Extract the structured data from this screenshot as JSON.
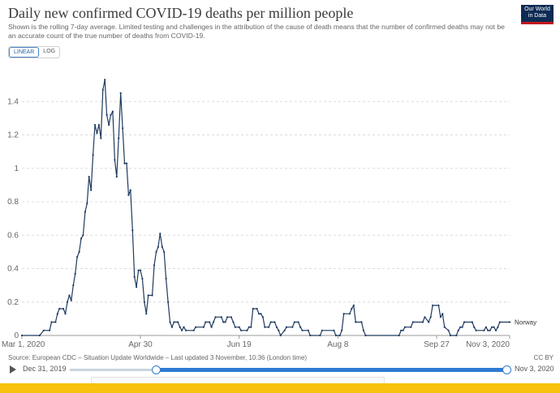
{
  "header": {
    "title": "Daily new confirmed COVID-19 deaths per million people",
    "subtitle": "Shown is the rolling 7-day average. Limited testing and challenges in the attribution of the cause of death means that the number of confirmed deaths may not be an accurate count of the true number of deaths from COVID-19.",
    "logo_line1": "Our World",
    "logo_line2": "in Data"
  },
  "scale_toggle": {
    "linear_label": "LINEAR",
    "log_label": "LOG",
    "selected": "LINEAR"
  },
  "footer": {
    "source": "Source: European CDC – Situation Update Worldwide – Last updated 3 November, 10:36 (London time)",
    "license": "CC BY"
  },
  "timeline": {
    "start_label": "Dec 31, 2019",
    "end_label": "Nov 3, 2020"
  },
  "colors": {
    "line": "#1f3a5f",
    "accent": "#2e7bd2",
    "footer_band": "#f7c20e",
    "logo_bg": "#0d2b53"
  },
  "chart_data": {
    "type": "line",
    "title": "Daily new confirmed COVID-19 deaths per million people",
    "xlabel": "",
    "ylabel": "",
    "x_range": [
      "2020-03-01",
      "2020-11-03"
    ],
    "ylim": [
      0,
      1.6
    ],
    "y_ticks": [
      0,
      0.2,
      0.4,
      0.6,
      0.8,
      1,
      1.2,
      1.4
    ],
    "y_tick_labels": [
      "0",
      "0.2",
      "0.4",
      "0.6",
      "0.8",
      "1",
      "1.2",
      "1.4"
    ],
    "x_ticks": [
      "2020-03-01",
      "2020-04-30",
      "2020-06-19",
      "2020-08-08",
      "2020-09-27",
      "2020-11-03"
    ],
    "x_tick_labels": [
      "Mar 1, 2020",
      "Apr 30",
      "Jun 19",
      "Aug 8",
      "Sep 27",
      "Nov 3, 2020"
    ],
    "grid": "horizontal",
    "series": [
      {
        "name": "Norway",
        "points": [
          [
            "2020-03-01",
            0
          ],
          [
            "2020-03-10",
            0
          ],
          [
            "2020-03-12",
            0.03
          ],
          [
            "2020-03-15",
            0.03
          ],
          [
            "2020-03-16",
            0.08
          ],
          [
            "2020-03-18",
            0.08
          ],
          [
            "2020-03-19",
            0.13
          ],
          [
            "2020-03-20",
            0.16
          ],
          [
            "2020-03-22",
            0.16
          ],
          [
            "2020-03-23",
            0.13
          ],
          [
            "2020-03-24",
            0.2
          ],
          [
            "2020-03-25",
            0.24
          ],
          [
            "2020-03-26",
            0.21
          ],
          [
            "2020-03-27",
            0.3
          ],
          [
            "2020-03-28",
            0.37
          ],
          [
            "2020-03-29",
            0.47
          ],
          [
            "2020-03-30",
            0.5
          ],
          [
            "2020-03-31",
            0.58
          ],
          [
            "2020-04-01",
            0.6
          ],
          [
            "2020-04-02",
            0.74
          ],
          [
            "2020-04-03",
            0.79
          ],
          [
            "2020-04-04",
            0.95
          ],
          [
            "2020-04-05",
            0.87
          ],
          [
            "2020-04-06",
            1.08
          ],
          [
            "2020-04-07",
            1.26
          ],
          [
            "2020-04-08",
            1.21
          ],
          [
            "2020-04-09",
            1.26
          ],
          [
            "2020-04-10",
            1.18
          ],
          [
            "2020-04-11",
            1.47
          ],
          [
            "2020-04-12",
            1.53
          ],
          [
            "2020-04-13",
            1.32
          ],
          [
            "2020-04-14",
            1.26
          ],
          [
            "2020-04-15",
            1.32
          ],
          [
            "2020-04-16",
            1.34
          ],
          [
            "2020-04-17",
            1.05
          ],
          [
            "2020-04-18",
            0.95
          ],
          [
            "2020-04-19",
            1.18
          ],
          [
            "2020-04-20",
            1.45
          ],
          [
            "2020-04-21",
            1.24
          ],
          [
            "2020-04-22",
            1.03
          ],
          [
            "2020-04-23",
            1.03
          ],
          [
            "2020-04-24",
            0.84
          ],
          [
            "2020-04-25",
            0.87
          ],
          [
            "2020-04-26",
            0.63
          ],
          [
            "2020-04-27",
            0.35
          ],
          [
            "2020-04-28",
            0.29
          ],
          [
            "2020-04-29",
            0.39
          ],
          [
            "2020-04-30",
            0.39
          ],
          [
            "2020-05-01",
            0.34
          ],
          [
            "2020-05-02",
            0.2
          ],
          [
            "2020-05-03",
            0.13
          ],
          [
            "2020-05-04",
            0.24
          ],
          [
            "2020-05-06",
            0.24
          ],
          [
            "2020-05-07",
            0.42
          ],
          [
            "2020-05-08",
            0.5
          ],
          [
            "2020-05-09",
            0.53
          ],
          [
            "2020-05-10",
            0.61
          ],
          [
            "2020-05-11",
            0.53
          ],
          [
            "2020-05-12",
            0.5
          ],
          [
            "2020-05-13",
            0.34
          ],
          [
            "2020-05-14",
            0.2
          ],
          [
            "2020-05-15",
            0.08
          ],
          [
            "2020-05-16",
            0.05
          ],
          [
            "2020-05-17",
            0.08
          ],
          [
            "2020-05-19",
            0.08
          ],
          [
            "2020-05-20",
            0.05
          ],
          [
            "2020-05-21",
            0.03
          ],
          [
            "2020-05-22",
            0.05
          ],
          [
            "2020-05-23",
            0.03
          ],
          [
            "2020-05-27",
            0.03
          ],
          [
            "2020-05-28",
            0.05
          ],
          [
            "2020-06-01",
            0.05
          ],
          [
            "2020-06-02",
            0.08
          ],
          [
            "2020-06-04",
            0.08
          ],
          [
            "2020-06-05",
            0.05
          ],
          [
            "2020-06-06",
            0.08
          ],
          [
            "2020-06-07",
            0.11
          ],
          [
            "2020-06-10",
            0.11
          ],
          [
            "2020-06-11",
            0.08
          ],
          [
            "2020-06-12",
            0.08
          ],
          [
            "2020-06-13",
            0.11
          ],
          [
            "2020-06-15",
            0.11
          ],
          [
            "2020-06-16",
            0.08
          ],
          [
            "2020-06-17",
            0.05
          ],
          [
            "2020-06-19",
            0.05
          ],
          [
            "2020-06-20",
            0.03
          ],
          [
            "2020-06-23",
            0.03
          ],
          [
            "2020-06-24",
            0.05
          ],
          [
            "2020-06-25",
            0.05
          ],
          [
            "2020-06-26",
            0.16
          ],
          [
            "2020-06-28",
            0.16
          ],
          [
            "2020-06-29",
            0.13
          ],
          [
            "2020-06-30",
            0.13
          ],
          [
            "2020-07-01",
            0.11
          ],
          [
            "2020-07-02",
            0.05
          ],
          [
            "2020-07-04",
            0.05
          ],
          [
            "2020-07-05",
            0.08
          ],
          [
            "2020-07-07",
            0.08
          ],
          [
            "2020-07-08",
            0.05
          ],
          [
            "2020-07-09",
            0.03
          ],
          [
            "2020-07-10",
            0
          ],
          [
            "2020-07-12",
            0.03
          ],
          [
            "2020-07-13",
            0.05
          ],
          [
            "2020-07-16",
            0.05
          ],
          [
            "2020-07-17",
            0.08
          ],
          [
            "2020-07-19",
            0.08
          ],
          [
            "2020-07-20",
            0.05
          ],
          [
            "2020-07-21",
            0.03
          ],
          [
            "2020-07-24",
            0.03
          ],
          [
            "2020-07-25",
            0
          ],
          [
            "2020-07-30",
            0
          ],
          [
            "2020-07-31",
            0.03
          ],
          [
            "2020-08-06",
            0.03
          ],
          [
            "2020-08-07",
            0
          ],
          [
            "2020-08-09",
            0
          ],
          [
            "2020-08-10",
            0.03
          ],
          [
            "2020-08-11",
            0.13
          ],
          [
            "2020-08-14",
            0.13
          ],
          [
            "2020-08-15",
            0.16
          ],
          [
            "2020-08-16",
            0.18
          ],
          [
            "2020-08-17",
            0.08
          ],
          [
            "2020-08-20",
            0.08
          ],
          [
            "2020-08-21",
            0.03
          ],
          [
            "2020-08-22",
            0
          ],
          [
            "2020-09-08",
            0
          ],
          [
            "2020-09-09",
            0.03
          ],
          [
            "2020-09-10",
            0.03
          ],
          [
            "2020-09-11",
            0.05
          ],
          [
            "2020-09-14",
            0.05
          ],
          [
            "2020-09-15",
            0.08
          ],
          [
            "2020-09-20",
            0.08
          ],
          [
            "2020-09-21",
            0.11
          ],
          [
            "2020-09-23",
            0.08
          ],
          [
            "2020-09-24",
            0.11
          ],
          [
            "2020-09-25",
            0.18
          ],
          [
            "2020-09-28",
            0.18
          ],
          [
            "2020-09-29",
            0.11
          ],
          [
            "2020-09-30",
            0.13
          ],
          [
            "2020-10-01",
            0.05
          ],
          [
            "2020-10-03",
            0.03
          ],
          [
            "2020-10-04",
            0
          ],
          [
            "2020-10-07",
            0
          ],
          [
            "2020-10-08",
            0.03
          ],
          [
            "2020-10-09",
            0.05
          ],
          [
            "2020-10-10",
            0.05
          ],
          [
            "2020-10-11",
            0.08
          ],
          [
            "2020-10-15",
            0.08
          ],
          [
            "2020-10-16",
            0.05
          ],
          [
            "2020-10-17",
            0.03
          ],
          [
            "2020-10-21",
            0.03
          ],
          [
            "2020-10-22",
            0.05
          ],
          [
            "2020-10-23",
            0.03
          ],
          [
            "2020-10-24",
            0.03
          ],
          [
            "2020-10-25",
            0.05
          ],
          [
            "2020-10-26",
            0.05
          ],
          [
            "2020-10-27",
            0.03
          ],
          [
            "2020-10-28",
            0.05
          ],
          [
            "2020-10-29",
            0.08
          ],
          [
            "2020-11-03",
            0.08
          ]
        ]
      }
    ]
  }
}
